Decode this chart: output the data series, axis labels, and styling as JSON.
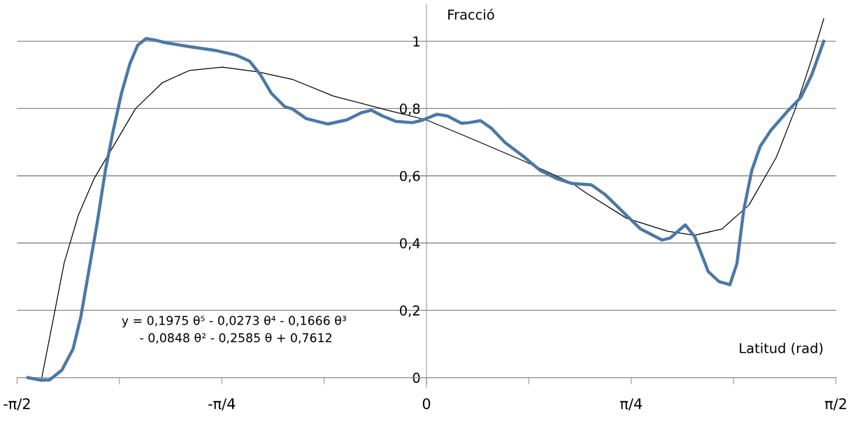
{
  "chart_data": {
    "type": "line",
    "xlabel": "Latitud (rad)",
    "ylabel": "Fracció",
    "annotations": [
      "y = 0,1975 θ⁵ - 0,0273 θ⁴ - 0,1666 θ³\n - 0,0848 θ² - 0,2585 θ + 0,7612"
    ],
    "xlim": [
      -1.5708,
      1.5708
    ],
    "ylim": [
      -0.03,
      1.11
    ],
    "xticks": [
      {
        "value": -1.5708,
        "label": "-π/2"
      },
      {
        "value": -1.1781,
        "label": null
      },
      {
        "value": -0.7854,
        "label": "-π/4"
      },
      {
        "value": -0.3927,
        "label": null
      },
      {
        "value": 0,
        "label": "0"
      },
      {
        "value": 0.3927,
        "label": null
      },
      {
        "value": 0.7854,
        "label": "π/4"
      },
      {
        "value": 1.1781,
        "label": null
      },
      {
        "value": 1.5708,
        "label": "π/2"
      }
    ],
    "yticks": [
      0,
      {
        "value": 0.2,
        "label": "0,2"
      },
      {
        "value": 0.4,
        "label": "0,4"
      },
      {
        "value": 0.6,
        "label": "0,6"
      },
      {
        "value": 0.8,
        "label": "0,8"
      },
      1
    ],
    "grid": "y",
    "legend": false,
    "marker": "none",
    "line_style": "solid",
    "series": [
      {
        "color": "#4a78a8",
        "x": [
          -1.529,
          -1.478,
          -1.446,
          -1.399,
          -1.356,
          -1.326,
          -1.296,
          -1.264,
          -1.232,
          -1.202,
          -1.17,
          -1.138,
          -1.108,
          -1.076,
          -1.044,
          -1.003,
          -0.91,
          -0.805,
          -0.731,
          -0.679,
          -0.637,
          -0.596,
          -0.543,
          -0.515,
          -0.461,
          -0.378,
          -0.306,
          -0.252,
          -0.212,
          -0.169,
          -0.118,
          -0.054,
          -0.013,
          0.04,
          0.08,
          0.134,
          0.164,
          0.207,
          0.248,
          0.301,
          0.373,
          0.436,
          0.499,
          0.559,
          0.633,
          0.684,
          0.757,
          0.821,
          0.904,
          0.935,
          0.993,
          1.029,
          1.081,
          1.123,
          1.164,
          1.191,
          1.217,
          1.248,
          1.28,
          1.321,
          1.384,
          1.436,
          1.478,
          1.524
        ],
        "values": [
          0.0,
          -0.008,
          -0.007,
          0.022,
          0.085,
          0.181,
          0.315,
          0.457,
          0.616,
          0.734,
          0.846,
          0.933,
          0.988,
          1.008,
          1.004,
          0.996,
          0.984,
          0.972,
          0.959,
          0.941,
          0.9,
          0.846,
          0.805,
          0.799,
          0.77,
          0.754,
          0.766,
          0.787,
          0.795,
          0.778,
          0.762,
          0.758,
          0.766,
          0.783,
          0.778,
          0.756,
          0.758,
          0.764,
          0.742,
          0.699,
          0.657,
          0.616,
          0.592,
          0.577,
          0.573,
          0.545,
          0.49,
          0.442,
          0.409,
          0.415,
          0.454,
          0.419,
          0.315,
          0.285,
          0.276,
          0.339,
          0.498,
          0.616,
          0.687,
          0.735,
          0.791,
          0.833,
          0.9,
          1.0
        ]
      },
      {
        "color": "#000000",
        "x": [
          -1.478,
          -1.43,
          -1.39,
          -1.336,
          -1.275,
          -1.202,
          -1.117,
          -1.013,
          -0.91,
          -0.783,
          -0.648,
          -0.512,
          -0.357,
          -0.149,
          0,
          0.164,
          0.373,
          0.561,
          0.612,
          0.767,
          0.925,
          1.029,
          1.134,
          1.237,
          1.342,
          1.415,
          1.478,
          1.524
        ],
        "values": [
          -0.008,
          0.181,
          0.341,
          0.482,
          0.592,
          0.687,
          0.799,
          0.877,
          0.913,
          0.923,
          0.909,
          0.886,
          0.837,
          0.795,
          0.766,
          0.713,
          0.644,
          0.577,
          0.549,
          0.474,
          0.435,
          0.423,
          0.442,
          0.513,
          0.655,
          0.799,
          0.948,
          1.067
        ]
      }
    ]
  }
}
